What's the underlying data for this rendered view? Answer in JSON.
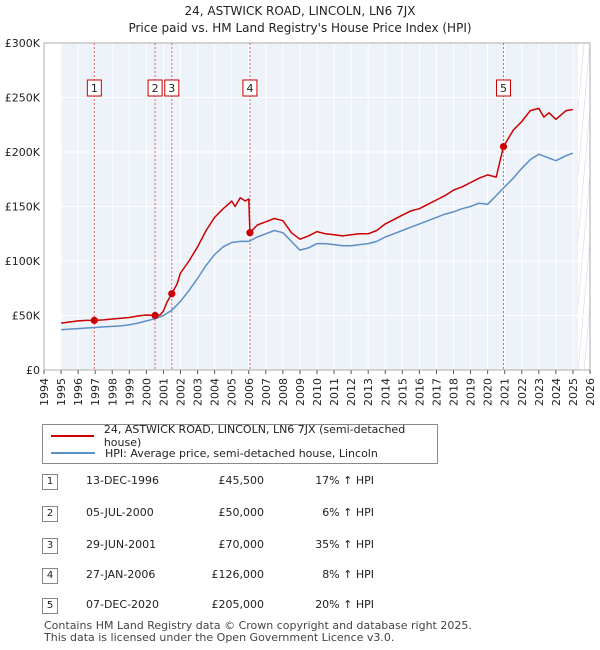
{
  "chart_data": {
    "type": "line",
    "title": "24, ASTWICK ROAD, LINCOLN, LN6 7JX",
    "subtitle": "Price paid vs. HM Land Registry's House Price Index (HPI)",
    "ylim": [
      0,
      300000
    ],
    "xlim": [
      1995,
      2025.3
    ],
    "yticks": [
      0,
      50000,
      100000,
      150000,
      200000,
      250000,
      300000
    ],
    "ytick_labels": [
      "£0",
      "£50K",
      "£100K",
      "£150K",
      "£200K",
      "£250K",
      "£300K"
    ],
    "xticks": [
      1994,
      1995,
      1996,
      1997,
      1998,
      1999,
      2000,
      2001,
      2002,
      2003,
      2004,
      2005,
      2006,
      2007,
      2008,
      2009,
      2010,
      2011,
      2012,
      2013,
      2014,
      2015,
      2016,
      2017,
      2018,
      2019,
      2020,
      2021,
      2022,
      2023,
      2024,
      2025,
      2026
    ],
    "xtick_labels": [
      "1994",
      "1995",
      "1996",
      "1997",
      "1998",
      "1999",
      "2000",
      "2001",
      "2002",
      "2003",
      "2004",
      "2005",
      "2006",
      "2007",
      "2008",
      "2009",
      "2010",
      "2011",
      "2012",
      "2013",
      "2014",
      "2015",
      "2016",
      "2017",
      "2018",
      "2019",
      "2020",
      "2021",
      "2022",
      "2023",
      "2024",
      "2025",
      "2026"
    ],
    "series": [
      {
        "name": "24, ASTWICK ROAD, LINCOLN, LN6 7JX (semi-detached house)",
        "color": "#cc0000",
        "x": [
          1995.0,
          1995.5,
          1996.0,
          1996.5,
          1996.95,
          1997.5,
          1998.0,
          1998.5,
          1999.0,
          1999.5,
          2000.0,
          2000.51,
          2000.8,
          2001.0,
          2001.2,
          2001.49,
          2001.8,
          2002.0,
          2002.5,
          2003.0,
          2003.5,
          2004.0,
          2004.5,
          2004.8,
          2005.0,
          2005.2,
          2005.5,
          2005.8,
          2006.0,
          2006.07,
          2006.5,
          2007.0,
          2007.5,
          2008.0,
          2008.5,
          2009.0,
          2009.5,
          2010.0,
          2010.5,
          2011.0,
          2011.5,
          2012.0,
          2012.5,
          2013.0,
          2013.5,
          2014.0,
          2014.5,
          2015.0,
          2015.5,
          2016.0,
          2016.5,
          2017.0,
          2017.5,
          2018.0,
          2018.5,
          2019.0,
          2019.5,
          2020.0,
          2020.5,
          2020.93,
          2021.2,
          2021.5,
          2022.0,
          2022.5,
          2023.0,
          2023.3,
          2023.6,
          2024.0,
          2024.3,
          2024.6,
          2025.0
        ],
        "values": [
          43000,
          44000,
          45000,
          45500,
          45500,
          46000,
          46800,
          47500,
          48200,
          49500,
          50500,
          50000,
          50500,
          54000,
          62000,
          70000,
          79000,
          89000,
          100000,
          113000,
          128000,
          140000,
          148000,
          152000,
          155000,
          150000,
          158000,
          155000,
          157000,
          126000,
          133000,
          136000,
          139000,
          137000,
          126000,
          120000,
          123000,
          127000,
          125000,
          124000,
          123000,
          124000,
          125000,
          125000,
          128000,
          134000,
          138000,
          142000,
          146000,
          148000,
          152000,
          156000,
          160000,
          165000,
          168000,
          172000,
          176000,
          179000,
          177000,
          205000,
          212000,
          220000,
          228000,
          238000,
          240000,
          232000,
          236000,
          230000,
          234000,
          238000,
          239000
        ]
      },
      {
        "name": "HPI: Average price, semi-detached house, Lincoln",
        "color": "#5b8fc7",
        "x": [
          1995.0,
          1995.5,
          1996.0,
          1996.5,
          1997.0,
          1997.5,
          1998.0,
          1998.5,
          1999.0,
          1999.5,
          2000.0,
          2000.5,
          2001.0,
          2001.5,
          2002.0,
          2002.5,
          2003.0,
          2003.5,
          2004.0,
          2004.5,
          2005.0,
          2005.5,
          2006.0,
          2006.5,
          2007.0,
          2007.5,
          2008.0,
          2008.5,
          2009.0,
          2009.5,
          2010.0,
          2010.5,
          2011.0,
          2011.5,
          2012.0,
          2012.5,
          2013.0,
          2013.5,
          2014.0,
          2014.5,
          2015.0,
          2015.5,
          2016.0,
          2016.5,
          2017.0,
          2017.5,
          2018.0,
          2018.5,
          2019.0,
          2019.5,
          2020.0,
          2020.5,
          2021.0,
          2021.5,
          2022.0,
          2022.5,
          2023.0,
          2023.5,
          2024.0,
          2024.5,
          2025.0
        ],
        "values": [
          37000,
          37500,
          38000,
          38500,
          39000,
          39500,
          40000,
          40500,
          41500,
          43000,
          45000,
          47000,
          50000,
          55000,
          63000,
          73000,
          84000,
          96000,
          106000,
          113000,
          117000,
          118000,
          118000,
          122000,
          125000,
          128000,
          126000,
          118000,
          110000,
          112000,
          116000,
          116000,
          115000,
          114000,
          114000,
          115000,
          116000,
          118000,
          122000,
          125000,
          128000,
          131000,
          134000,
          137000,
          140000,
          143000,
          145000,
          148000,
          150000,
          153000,
          152000,
          160000,
          168000,
          176000,
          185000,
          193000,
          198000,
          195000,
          192000,
          196000,
          199000
        ]
      }
    ],
    "transactions": [
      {
        "label": "1",
        "x": 1996.95,
        "price": 45500
      },
      {
        "label": "2",
        "x": 2000.51,
        "price": 50000
      },
      {
        "label": "3",
        "x": 2001.49,
        "price": 70000
      },
      {
        "label": "4",
        "x": 2006.07,
        "price": 126000
      },
      {
        "label": "5",
        "x": 2020.93,
        "price": 205000
      }
    ]
  },
  "legend": {
    "items": [
      {
        "label": "24, ASTWICK ROAD, LINCOLN, LN6 7JX (semi-detached house)",
        "color": "#cc0000"
      },
      {
        "label": "HPI: Average price, semi-detached house, Lincoln",
        "color": "#5b8fc7"
      }
    ]
  },
  "table": [
    {
      "num": "1",
      "date": "13-DEC-1996",
      "price": "£45,500",
      "hpi": "17% ↑ HPI"
    },
    {
      "num": "2",
      "date": "05-JUL-2000",
      "price": "£50,000",
      "hpi": "6% ↑ HPI"
    },
    {
      "num": "3",
      "date": "29-JUN-2001",
      "price": "£70,000",
      "hpi": "35% ↑ HPI"
    },
    {
      "num": "4",
      "date": "27-JAN-2006",
      "price": "£126,000",
      "hpi": "8% ↑ HPI"
    },
    {
      "num": "5",
      "date": "07-DEC-2020",
      "price": "£205,000",
      "hpi": "20% ↑ HPI"
    }
  ],
  "footer": {
    "line1": "Contains HM Land Registry data © Crown copyright and database right 2025.",
    "line2": "This data is licensed under the Open Government Licence v3.0."
  }
}
